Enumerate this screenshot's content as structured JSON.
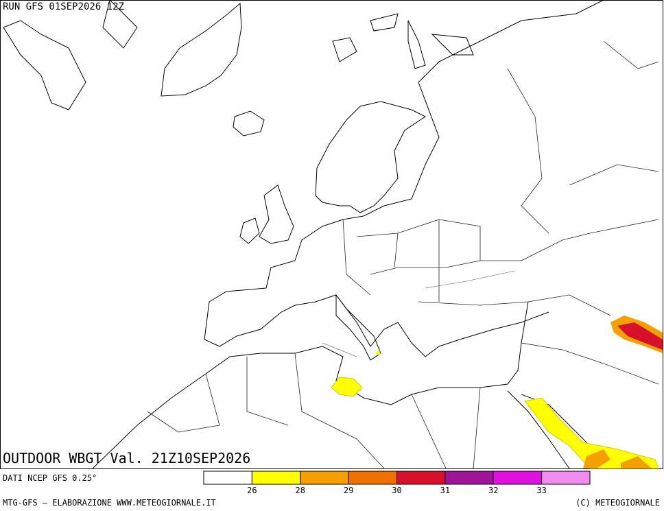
{
  "header": {
    "run": "RUN GFS 01SEP2026 12Z"
  },
  "title": "OUTDOOR WBGT Val. 21Z10SEP2026",
  "source": "DATI NCEP GFS 0.25°",
  "legend": {
    "colors": [
      "#ffffff",
      "#ffff00",
      "#f5a000",
      "#f07000",
      "#d8102c",
      "#a0149a",
      "#e010e0",
      "#f08cf0"
    ],
    "labels": [
      26,
      28,
      29,
      30,
      31,
      32,
      33
    ]
  },
  "footer": {
    "left": "MTG-GFS — ELABORAZIONE WWW.METEOGIORNALE.IT",
    "right": "(C) METEOGIORNALE"
  }
}
